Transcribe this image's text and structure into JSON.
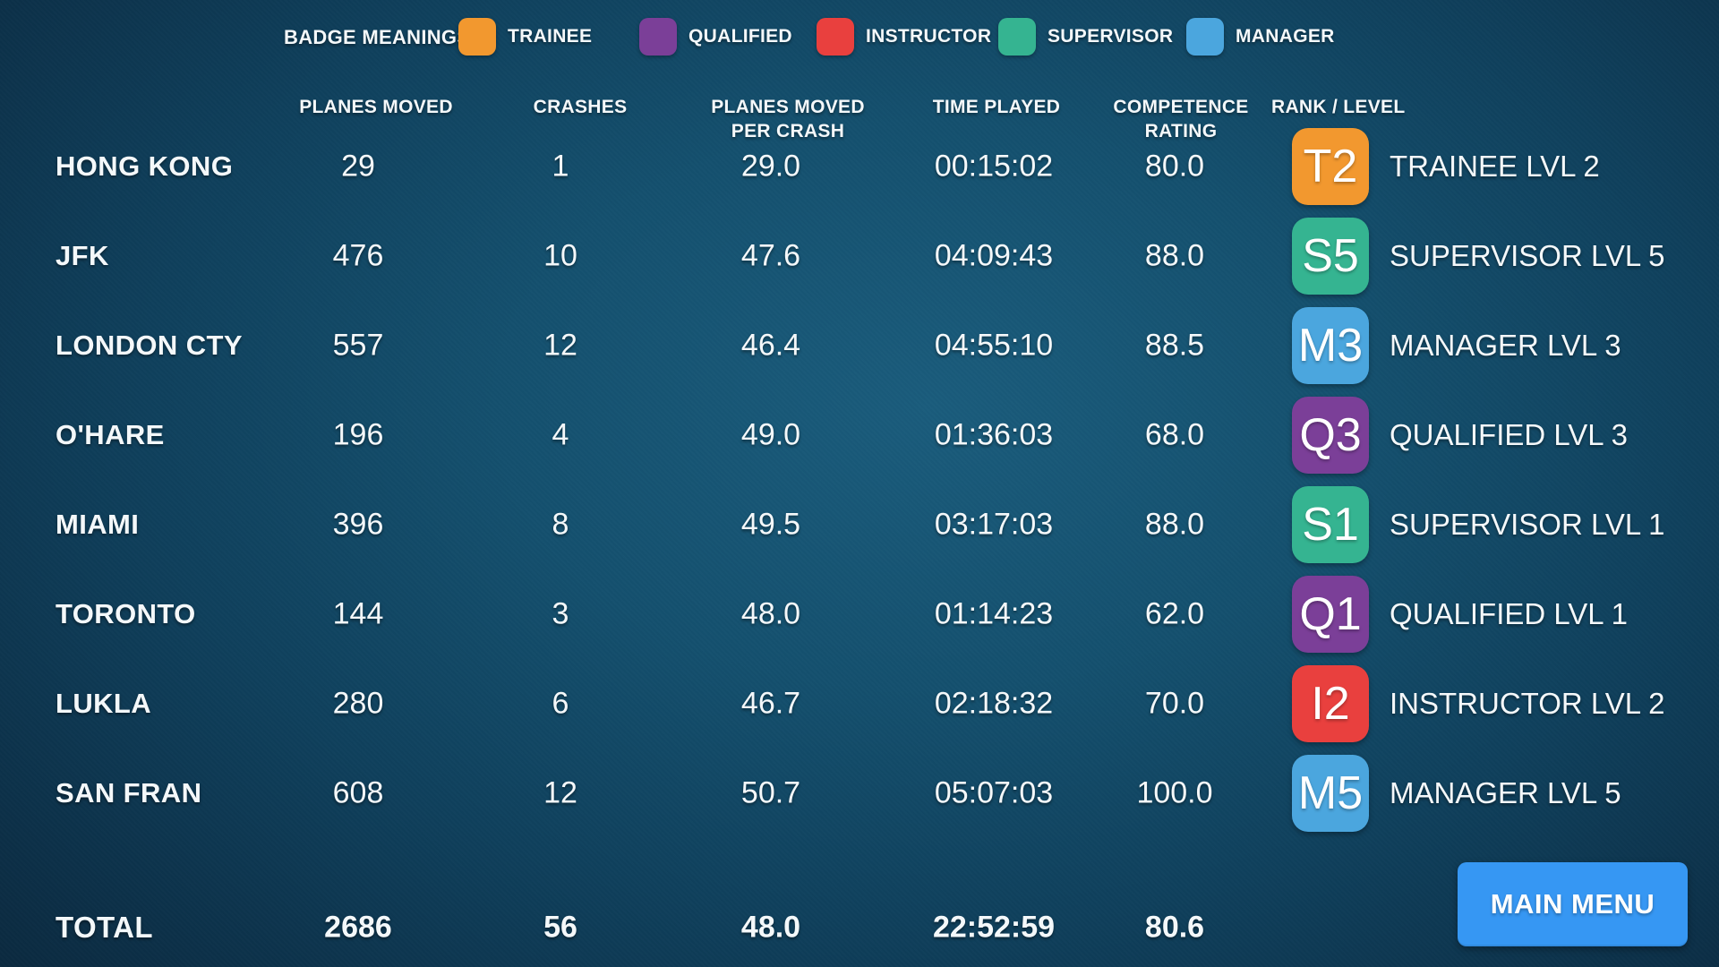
{
  "legend": {
    "title": "BADGE MEANINGS:",
    "items": [
      {
        "label": "TRAINEE",
        "color": "#F2982F"
      },
      {
        "label": "QUALIFIED",
        "color": "#7B3F98"
      },
      {
        "label": "INSTRUCTOR",
        "color": "#E9403E"
      },
      {
        "label": "SUPERVISOR",
        "color": "#35B491"
      },
      {
        "label": "MANAGER",
        "color": "#4BA6DE"
      }
    ]
  },
  "columns": {
    "planes_moved": "PLANES MOVED",
    "crashes": "CRASHES",
    "planes_moved_per_crash": "PLANES MOVED\nPER CRASH",
    "time_played": "TIME PLAYED",
    "competence_rating": "COMPETENCE\nRATING",
    "rank_level": "RANK / LEVEL"
  },
  "rows": [
    {
      "airport": "HONG KONG",
      "planes_moved": "29",
      "crashes": "1",
      "planes_per_crash": "29.0",
      "time_played": "00:15:02",
      "competence": "80.0",
      "badge": "T2",
      "badge_color": "#F2982F",
      "rank": "TRAINEE LVL 2"
    },
    {
      "airport": "JFK",
      "planes_moved": "476",
      "crashes": "10",
      "planes_per_crash": "47.6",
      "time_played": "04:09:43",
      "competence": "88.0",
      "badge": "S5",
      "badge_color": "#35B491",
      "rank": "SUPERVISOR LVL 5"
    },
    {
      "airport": "LONDON CTY",
      "planes_moved": "557",
      "crashes": "12",
      "planes_per_crash": "46.4",
      "time_played": "04:55:10",
      "competence": "88.5",
      "badge": "M3",
      "badge_color": "#4BA6DE",
      "rank": "MANAGER LVL 3"
    },
    {
      "airport": "O'HARE",
      "planes_moved": "196",
      "crashes": "4",
      "planes_per_crash": "49.0",
      "time_played": "01:36:03",
      "competence": "68.0",
      "badge": "Q3",
      "badge_color": "#7B3F98",
      "rank": "QUALIFIED LVL 3"
    },
    {
      "airport": "MIAMI",
      "planes_moved": "396",
      "crashes": "8",
      "planes_per_crash": "49.5",
      "time_played": "03:17:03",
      "competence": "88.0",
      "badge": "S1",
      "badge_color": "#35B491",
      "rank": "SUPERVISOR LVL 1"
    },
    {
      "airport": "TORONTO",
      "planes_moved": "144",
      "crashes": "3",
      "planes_per_crash": "48.0",
      "time_played": "01:14:23",
      "competence": "62.0",
      "badge": "Q1",
      "badge_color": "#7B3F98",
      "rank": "QUALIFIED LVL 1"
    },
    {
      "airport": "LUKLA",
      "planes_moved": "280",
      "crashes": "6",
      "planes_per_crash": "46.7",
      "time_played": "02:18:32",
      "competence": "70.0",
      "badge": "I2",
      "badge_color": "#E9403E",
      "rank": "INSTRUCTOR LVL 2"
    },
    {
      "airport": "SAN FRAN",
      "planes_moved": "608",
      "crashes": "12",
      "planes_per_crash": "50.7",
      "time_played": "05:07:03",
      "competence": "100.0",
      "badge": "M5",
      "badge_color": "#4BA6DE",
      "rank": "MANAGER LVL 5"
    }
  ],
  "total": {
    "label": "TOTAL",
    "planes_moved": "2686",
    "crashes": "56",
    "planes_per_crash": "48.0",
    "time_played": "22:52:59",
    "competence": "80.6"
  },
  "buttons": {
    "main_menu": "MAIN MENU"
  },
  "colors": {
    "main_menu_blue": "#3697F3",
    "background_dark": "#0A2336",
    "background_light": "#1A5C7C"
  }
}
